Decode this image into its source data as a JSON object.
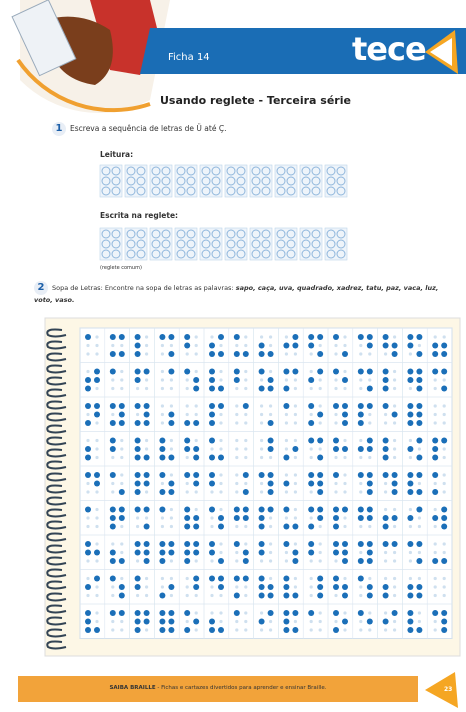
{
  "header": {
    "sheet": "Ficha 14",
    "brand": "tece"
  },
  "title": "Usando reglete - Terceira série",
  "exercise_1": {
    "number": "1",
    "instruction": "Escreva a sequência de letras de Ü até Ç.",
    "reading_label": "Leitura:",
    "writing_label": "Escrita na reglete:",
    "writing_note": "(reglete comum)"
  },
  "exercise_2": {
    "number": "2",
    "instruction": "Sopa de Letras: Encontre na sopa de letras as palavras:",
    "words": "sapo, caça, uva, quadrado, xadrez, tatu, paz, vaca, luz, voto, vaso."
  },
  "footer": {
    "brand": "SAIBA BRAILLE",
    "text": " - Fichas e cartazes divertidos para aprender e ensinar Braille.",
    "page": "23"
  }
}
